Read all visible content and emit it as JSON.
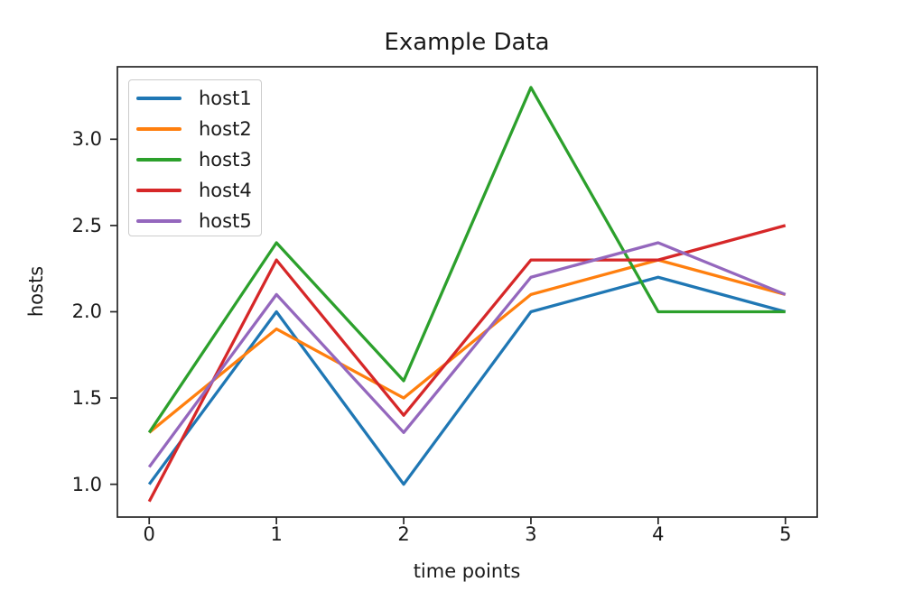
{
  "chart_data": {
    "type": "line",
    "title": "Example Data",
    "xlabel": "time points",
    "ylabel": "hosts",
    "x": [
      0,
      1,
      2,
      3,
      4,
      5
    ],
    "series": [
      {
        "name": "host1",
        "color": "#1f77b4",
        "values": [
          1.0,
          2.0,
          1.0,
          2.0,
          2.2,
          2.0
        ]
      },
      {
        "name": "host2",
        "color": "#ff7f0e",
        "values": [
          1.3,
          1.9,
          1.5,
          2.1,
          2.3,
          2.1
        ]
      },
      {
        "name": "host3",
        "color": "#2ca02c",
        "values": [
          1.3,
          2.4,
          1.6,
          3.3,
          2.0,
          2.0
        ]
      },
      {
        "name": "host4",
        "color": "#d62728",
        "values": [
          0.9,
          2.3,
          1.4,
          2.3,
          2.3,
          2.5
        ]
      },
      {
        "name": "host5",
        "color": "#9467bd",
        "values": [
          1.1,
          2.1,
          1.3,
          2.2,
          2.4,
          2.1
        ]
      }
    ],
    "xticks": [
      "0",
      "1",
      "2",
      "3",
      "4",
      "5"
    ],
    "yticks": [
      "1.0",
      "1.5",
      "2.0",
      "2.5",
      "3.0"
    ],
    "xlim": [
      -0.25,
      5.25
    ],
    "ylim": [
      0.81,
      3.42
    ],
    "grid": false,
    "legend_position": "upper left",
    "axis_color": "#262626",
    "background_color": "#ffffff"
  }
}
